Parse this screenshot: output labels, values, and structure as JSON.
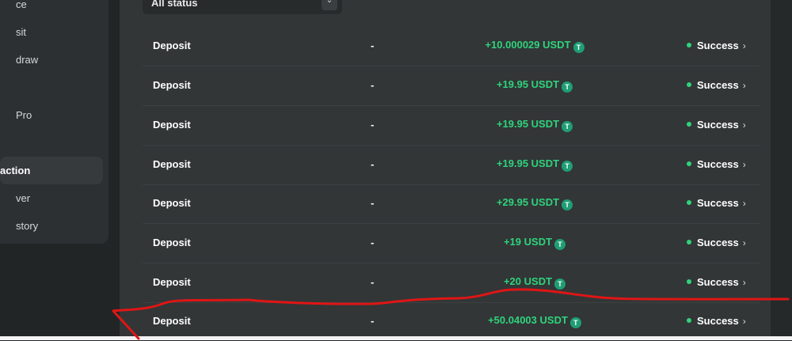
{
  "sidebar": {
    "items": [
      {
        "label": "ce"
      },
      {
        "label": "sit"
      },
      {
        "label": "draw"
      },
      {
        "label": "Pro"
      },
      {
        "label": "action"
      },
      {
        "label": "ver"
      },
      {
        "label": "story"
      }
    ]
  },
  "filter": {
    "status_value": "All status"
  },
  "transactions": [
    {
      "type": "Deposit",
      "detail": "-",
      "amount": "+10.000029 USDT",
      "status": "Success"
    },
    {
      "type": "Deposit",
      "detail": "-",
      "amount": "+19.95 USDT",
      "status": "Success"
    },
    {
      "type": "Deposit",
      "detail": "-",
      "amount": "+19.95 USDT",
      "status": "Success"
    },
    {
      "type": "Deposit",
      "detail": "-",
      "amount": "+19.95 USDT",
      "status": "Success"
    },
    {
      "type": "Deposit",
      "detail": "-",
      "amount": "+29.95 USDT",
      "status": "Success"
    },
    {
      "type": "Deposit",
      "detail": "-",
      "amount": "+19 USDT",
      "status": "Success"
    },
    {
      "type": "Deposit",
      "detail": "-",
      "amount": "+20 USDT",
      "status": "Success"
    },
    {
      "type": "Deposit",
      "detail": "-",
      "amount": "+50.04003 USDT",
      "status": "Success"
    }
  ],
  "icons": {
    "token": "tether-icon",
    "chevron": "chevron-right-icon"
  },
  "colors": {
    "success": "#2fd37c",
    "annotation": "#e01515"
  }
}
